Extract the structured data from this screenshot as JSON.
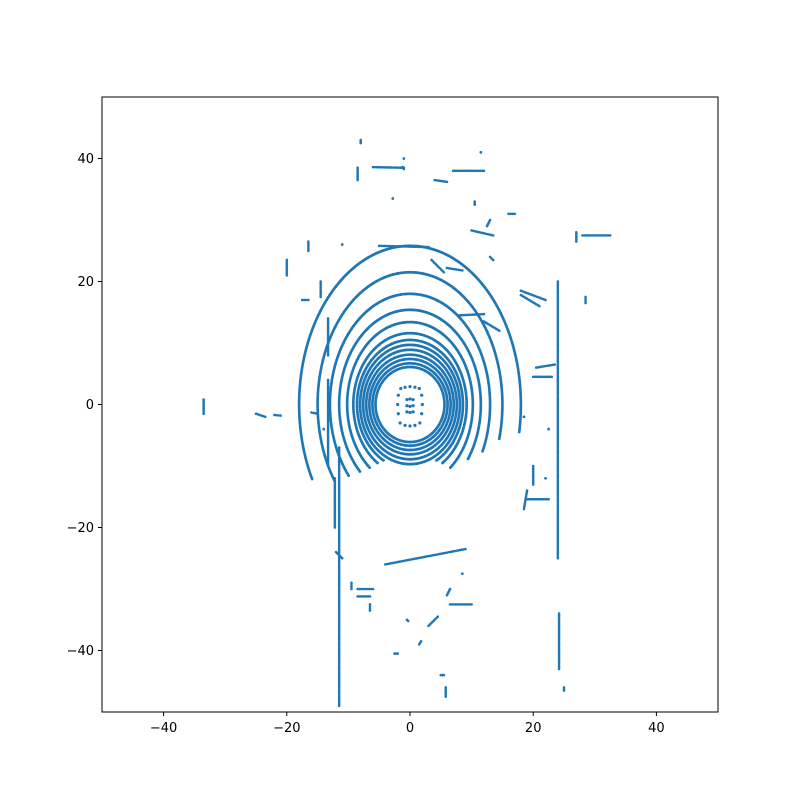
{
  "chart_data": {
    "type": "scatter",
    "title": "",
    "xlabel": "",
    "ylabel": "",
    "xlim": [
      -50,
      50
    ],
    "ylim": [
      -50,
      50
    ],
    "xticks": [
      -40,
      -20,
      0,
      20,
      40
    ],
    "yticks": [
      -40,
      -20,
      0,
      20,
      40
    ],
    "xtick_labels": [
      "−40",
      "−20",
      "0",
      "20",
      "40"
    ],
    "ytick_labels": [
      "−40",
      "−20",
      "0",
      "20",
      "40"
    ],
    "grid": false,
    "legend": "none",
    "marker_color": "#1f77b4",
    "rings": [
      {
        "cx": 0,
        "cy": 0,
        "rx": 5.6,
        "ry": 6.1,
        "start": -180,
        "end": 180
      },
      {
        "cx": 0,
        "cy": 0,
        "rx": 6.1,
        "ry": 6.7,
        "start": -180,
        "end": 180
      },
      {
        "cx": 0,
        "cy": 0,
        "rx": 6.6,
        "ry": 7.4,
        "start": -180,
        "end": 180
      },
      {
        "cx": 0,
        "cy": 0,
        "rx": 7.1,
        "ry": 8.1,
        "start": -180,
        "end": 180
      },
      {
        "cx": 0,
        "cy": 0,
        "rx": 7.6,
        "ry": 8.9,
        "start": -180,
        "end": 180
      },
      {
        "cx": 0,
        "cy": 0,
        "rx": 8.1,
        "ry": 9.7,
        "start": -180,
        "end": 180
      },
      {
        "cx": 0,
        "cy": 0,
        "rx": 8.6,
        "ry": 10.5,
        "start": -150,
        "end": 150
      },
      {
        "cx": 0,
        "cy": 0,
        "rx": 9.2,
        "ry": 11.6,
        "start": -145,
        "end": 145
      },
      {
        "cx": 0,
        "cy": 0,
        "rx": 10.2,
        "ry": 13.4,
        "start": -140,
        "end": 140
      },
      {
        "cx": 0,
        "cy": 0,
        "rx": 11.5,
        "ry": 15.4,
        "start": -135,
        "end": 125
      },
      {
        "cx": 0,
        "cy": 0,
        "rx": 13.0,
        "ry": 18.0,
        "start": -130,
        "end": 115
      },
      {
        "cx": 0,
        "cy": 0,
        "rx": 15.0,
        "ry": 21.5,
        "start": -125,
        "end": 105
      },
      {
        "cx": 0,
        "cy": 0,
        "rx": 18.0,
        "ry": 25.8,
        "start": -118,
        "end": 100
      }
    ],
    "inner_points": [
      [
        -1.5,
        2.6
      ],
      [
        -0.8,
        2.8
      ],
      [
        0,
        2.9
      ],
      [
        0.8,
        2.8
      ],
      [
        1.5,
        2.6
      ],
      [
        -1.9,
        1.5
      ],
      [
        1.9,
        1.5
      ],
      [
        -2.0,
        0
      ],
      [
        2.0,
        0
      ],
      [
        -1.9,
        -1.5
      ],
      [
        1.9,
        -1.5
      ],
      [
        -1.6,
        -3.0
      ],
      [
        -0.8,
        -3.4
      ],
      [
        0,
        -3.5
      ],
      [
        0.8,
        -3.4
      ],
      [
        1.6,
        -3.0
      ],
      [
        -0.5,
        0.8
      ],
      [
        0,
        0.9
      ],
      [
        0.5,
        0.8
      ],
      [
        -0.5,
        -0.2
      ],
      [
        0,
        -0.3
      ],
      [
        0.5,
        -0.2
      ],
      [
        -0.5,
        -1.2
      ],
      [
        0,
        -1.3
      ],
      [
        0.5,
        -1.2
      ]
    ],
    "segments": [
      [
        [
          -11.5,
          -7
        ],
        [
          -11.5,
          -49
        ]
      ],
      [
        [
          -12.2,
          -12
        ],
        [
          -12.2,
          -20
        ]
      ],
      [
        [
          24.0,
          20
        ],
        [
          24.0,
          -25
        ]
      ],
      [
        [
          24.2,
          -34
        ],
        [
          24.2,
          -43
        ]
      ],
      [
        [
          -13.3,
          4
        ],
        [
          -13.3,
          -10
        ]
      ],
      [
        [
          -13.3,
          14
        ],
        [
          -13.3,
          8
        ]
      ],
      [
        [
          -5.0,
          25.8
        ],
        [
          3.0,
          25.6
        ]
      ],
      [
        [
          -6.0,
          38.6
        ],
        [
          -1.0,
          38.5
        ]
      ],
      [
        [
          -1.0,
          38.3
        ],
        [
          -1.2,
          38.6
        ]
      ],
      [
        [
          4.0,
          36.5
        ],
        [
          6.0,
          36.2
        ]
      ],
      [
        [
          7.0,
          38.0
        ],
        [
          12.0,
          38.0
        ]
      ],
      [
        [
          18.0,
          18.5
        ],
        [
          22.0,
          17.0
        ]
      ],
      [
        [
          18.0,
          17.8
        ],
        [
          21.0,
          16.0
        ]
      ],
      [
        [
          19.0,
          -15.4
        ],
        [
          22.5,
          -15.4
        ]
      ],
      [
        [
          -4.0,
          -26.0
        ],
        [
          9.0,
          -23.5
        ]
      ],
      [
        [
          6.5,
          -32.5
        ],
        [
          10.0,
          -32.5
        ]
      ],
      [
        [
          -8.5,
          -30.0
        ],
        [
          -6.0,
          -30.0
        ]
      ],
      [
        [
          -8.5,
          -31.2
        ],
        [
          -6.5,
          -31.2
        ]
      ],
      [
        [
          10.0,
          28.3
        ],
        [
          13.5,
          27.5
        ]
      ],
      [
        [
          27.0,
          28.0
        ],
        [
          27.0,
          26.5
        ]
      ],
      [
        [
          28.0,
          27.5
        ],
        [
          32.5,
          27.5
        ]
      ],
      [
        [
          23.0,
          4.5
        ],
        [
          20.0,
          4.5
        ]
      ],
      [
        [
          8.0,
          14.5
        ],
        [
          12.0,
          14.7
        ]
      ],
      [
        [
          12.0,
          13.5
        ],
        [
          14.5,
          12.0
        ]
      ],
      [
        [
          -20.0,
          23.5
        ],
        [
          -20.0,
          21.0
        ]
      ],
      [
        [
          -17.5,
          17.0
        ],
        [
          -16.5,
          17.0
        ]
      ],
      [
        [
          -16.5,
          26.5
        ],
        [
          -16.5,
          25.0
        ]
      ],
      [
        [
          -14.5,
          20.0
        ],
        [
          -14.5,
          17.5
        ]
      ],
      [
        [
          -25.0,
          -1.5
        ],
        [
          -23.5,
          -2.0
        ]
      ],
      [
        [
          -16.0,
          -1.3
        ],
        [
          -15.0,
          -1.5
        ]
      ],
      [
        [
          -33.5,
          0.8
        ],
        [
          -33.5,
          -1.5
        ]
      ],
      [
        [
          -21.0,
          -1.8
        ],
        [
          -22.0,
          -1.7
        ]
      ],
      [
        [
          -1.0,
          40.0
        ],
        [
          -1.0,
          40.0
        ]
      ],
      [
        [
          -8.0,
          42.5
        ],
        [
          -8.0,
          43.0
        ]
      ],
      [
        [
          -8.5,
          36.5
        ],
        [
          -8.5,
          38.5
        ]
      ],
      [
        [
          11.5,
          41.0
        ],
        [
          11.5,
          41.0
        ]
      ],
      [
        [
          5.0,
          -44.0
        ],
        [
          5.5,
          -44.0
        ]
      ],
      [
        [
          5.8,
          -46.0
        ],
        [
          5.8,
          -47.5
        ]
      ],
      [
        [
          25.0,
          -46.0
        ],
        [
          25.0,
          -46.5
        ]
      ],
      [
        [
          3.0,
          -36.0
        ],
        [
          4.5,
          -34.5
        ]
      ],
      [
        [
          -2.5,
          -40.5
        ],
        [
          -2.0,
          -40.5
        ]
      ],
      [
        [
          -0.5,
          -35.0
        ],
        [
          -0.3,
          -35.2
        ]
      ],
      [
        [
          1.5,
          -39.0
        ],
        [
          1.8,
          -38.5
        ]
      ],
      [
        [
          -6.5,
          -32.5
        ],
        [
          -6.5,
          -33.5
        ]
      ],
      [
        [
          16.0,
          31.0
        ],
        [
          17.0,
          31.0
        ]
      ],
      [
        [
          10.5,
          33.0
        ],
        [
          10.5,
          32.5
        ]
      ],
      [
        [
          13.0,
          30.0
        ],
        [
          12.5,
          29.0
        ]
      ],
      [
        [
          -2.8,
          33.5
        ],
        [
          -2.8,
          33.5
        ]
      ],
      [
        [
          28.5,
          17.5
        ],
        [
          28.5,
          16.5
        ]
      ],
      [
        [
          13.0,
          24.0
        ],
        [
          13.5,
          23.5
        ]
      ],
      [
        [
          3.5,
          23.5
        ],
        [
          5.5,
          21.5
        ]
      ],
      [
        [
          6.0,
          22.2
        ],
        [
          8.5,
          21.8
        ]
      ],
      [
        [
          -11.0,
          26.0
        ],
        [
          -11.0,
          26.0
        ]
      ],
      [
        [
          20.5,
          6.0
        ],
        [
          23.5,
          6.5
        ]
      ],
      [
        [
          18.5,
          -2.0
        ],
        [
          18.5,
          -2.0
        ]
      ],
      [
        [
          22.5,
          -4.0
        ],
        [
          22.5,
          -4.0
        ]
      ],
      [
        [
          22.0,
          -12.0
        ],
        [
          22.0,
          -12.0
        ]
      ],
      [
        [
          20.0,
          -10.0
        ],
        [
          20.0,
          -13.0
        ]
      ],
      [
        [
          19.0,
          -14.0
        ],
        [
          18.5,
          -17.0
        ]
      ],
      [
        [
          -14.0,
          -4.0
        ],
        [
          -14.0,
          -4.0
        ]
      ],
      [
        [
          -12.0,
          -24.0
        ],
        [
          -11.0,
          -25.0
        ]
      ],
      [
        [
          -9.5,
          -29.0
        ],
        [
          -9.5,
          -30.0
        ]
      ],
      [
        [
          8.5,
          -27.5
        ],
        [
          8.5,
          -27.5
        ]
      ],
      [
        [
          6.5,
          -30.0
        ],
        [
          6.0,
          -31.0
        ]
      ]
    ]
  }
}
